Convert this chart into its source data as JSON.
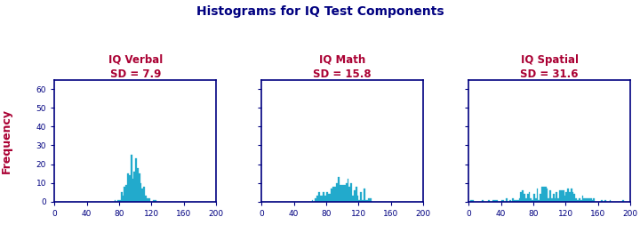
{
  "title": "Histograms for IQ Test Components",
  "title_color": "#000080",
  "title_fontsize": 10,
  "subtitles": [
    "IQ Verbal",
    "IQ Math",
    "IQ Spatial"
  ],
  "sds": [
    "SD = 7.9",
    "SD = 15.8",
    "SD = 31.6"
  ],
  "subtitle_color": "#aa0033",
  "subtitle_fontsize": 8.5,
  "ylabel": "Frequency",
  "ylabel_color": "#aa0033",
  "ylabel_fontsize": 9,
  "bar_color": "#22aacc",
  "bar_edge_color": "#22aacc",
  "spine_color": "#000080",
  "tick_color": "#000080",
  "tick_label_color": "#000080",
  "xlim": [
    0,
    200
  ],
  "xticks": [
    0,
    40,
    80,
    120,
    160,
    200
  ],
  "xtick_labels": [
    "0",
    "40",
    "80",
    "120",
    "160",
    "200"
  ],
  "ylim": [
    0,
    65
  ],
  "yticks": [
    0,
    10,
    20,
    30,
    40,
    50,
    60
  ],
  "means": [
    100,
    100,
    100
  ],
  "std_devs": [
    7.9,
    15.8,
    31.6
  ],
  "n_samples": 200,
  "background_color": "#ffffff",
  "bin_width": 2,
  "bins_start": 0,
  "bins_end": 200,
  "seeds": [
    12,
    7,
    99
  ]
}
